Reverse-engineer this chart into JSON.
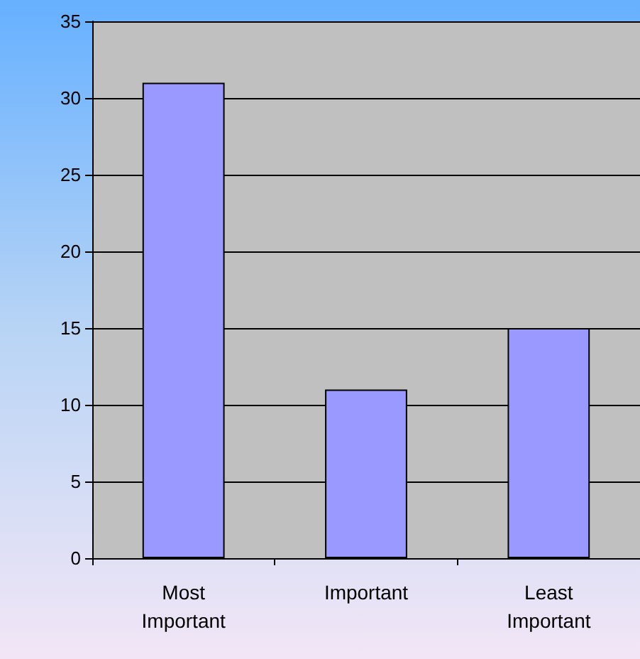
{
  "chart_data": {
    "type": "bar",
    "categories": [
      "Most Important",
      "Important",
      "Least Important"
    ],
    "values": [
      31,
      11,
      15
    ],
    "color": "#9999ff",
    "ylim": [
      0,
      35
    ],
    "yticks": [
      0,
      5,
      10,
      15,
      20,
      25,
      30,
      35
    ],
    "grid": "y"
  }
}
